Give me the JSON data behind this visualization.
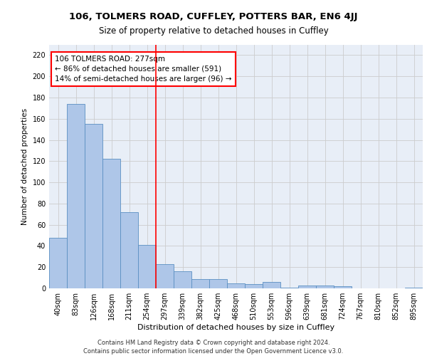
{
  "title1": "106, TOLMERS ROAD, CUFFLEY, POTTERS BAR, EN6 4JJ",
  "title2": "Size of property relative to detached houses in Cuffley",
  "xlabel": "Distribution of detached houses by size in Cuffley",
  "ylabel": "Number of detached properties",
  "categories": [
    "40sqm",
    "83sqm",
    "126sqm",
    "168sqm",
    "211sqm",
    "254sqm",
    "297sqm",
    "339sqm",
    "382sqm",
    "425sqm",
    "468sqm",
    "510sqm",
    "553sqm",
    "596sqm",
    "639sqm",
    "681sqm",
    "724sqm",
    "767sqm",
    "810sqm",
    "852sqm",
    "895sqm"
  ],
  "values": [
    48,
    174,
    155,
    122,
    72,
    41,
    23,
    16,
    9,
    9,
    5,
    4,
    6,
    1,
    3,
    3,
    2,
    0,
    0,
    0,
    1
  ],
  "bar_color": "#aec6e8",
  "bar_edge_color": "#5a8fc2",
  "vline_x": 5.5,
  "vline_color": "red",
  "annotation_text": "106 TOLMERS ROAD: 277sqm\n← 86% of detached houses are smaller (591)\n14% of semi-detached houses are larger (96) →",
  "annotation_box_color": "white",
  "annotation_box_edge_color": "red",
  "ylim": [
    0,
    230
  ],
  "yticks": [
    0,
    20,
    40,
    60,
    80,
    100,
    120,
    140,
    160,
    180,
    200,
    220
  ],
  "grid_color": "#cccccc",
  "bg_color": "#e8eef7",
  "footer": "Contains HM Land Registry data © Crown copyright and database right 2024.\nContains public sector information licensed under the Open Government Licence v3.0.",
  "title1_fontsize": 9.5,
  "title2_fontsize": 8.5,
  "xlabel_fontsize": 8,
  "ylabel_fontsize": 7.5,
  "tick_fontsize": 7,
  "annotation_fontsize": 7.5,
  "footer_fontsize": 6
}
